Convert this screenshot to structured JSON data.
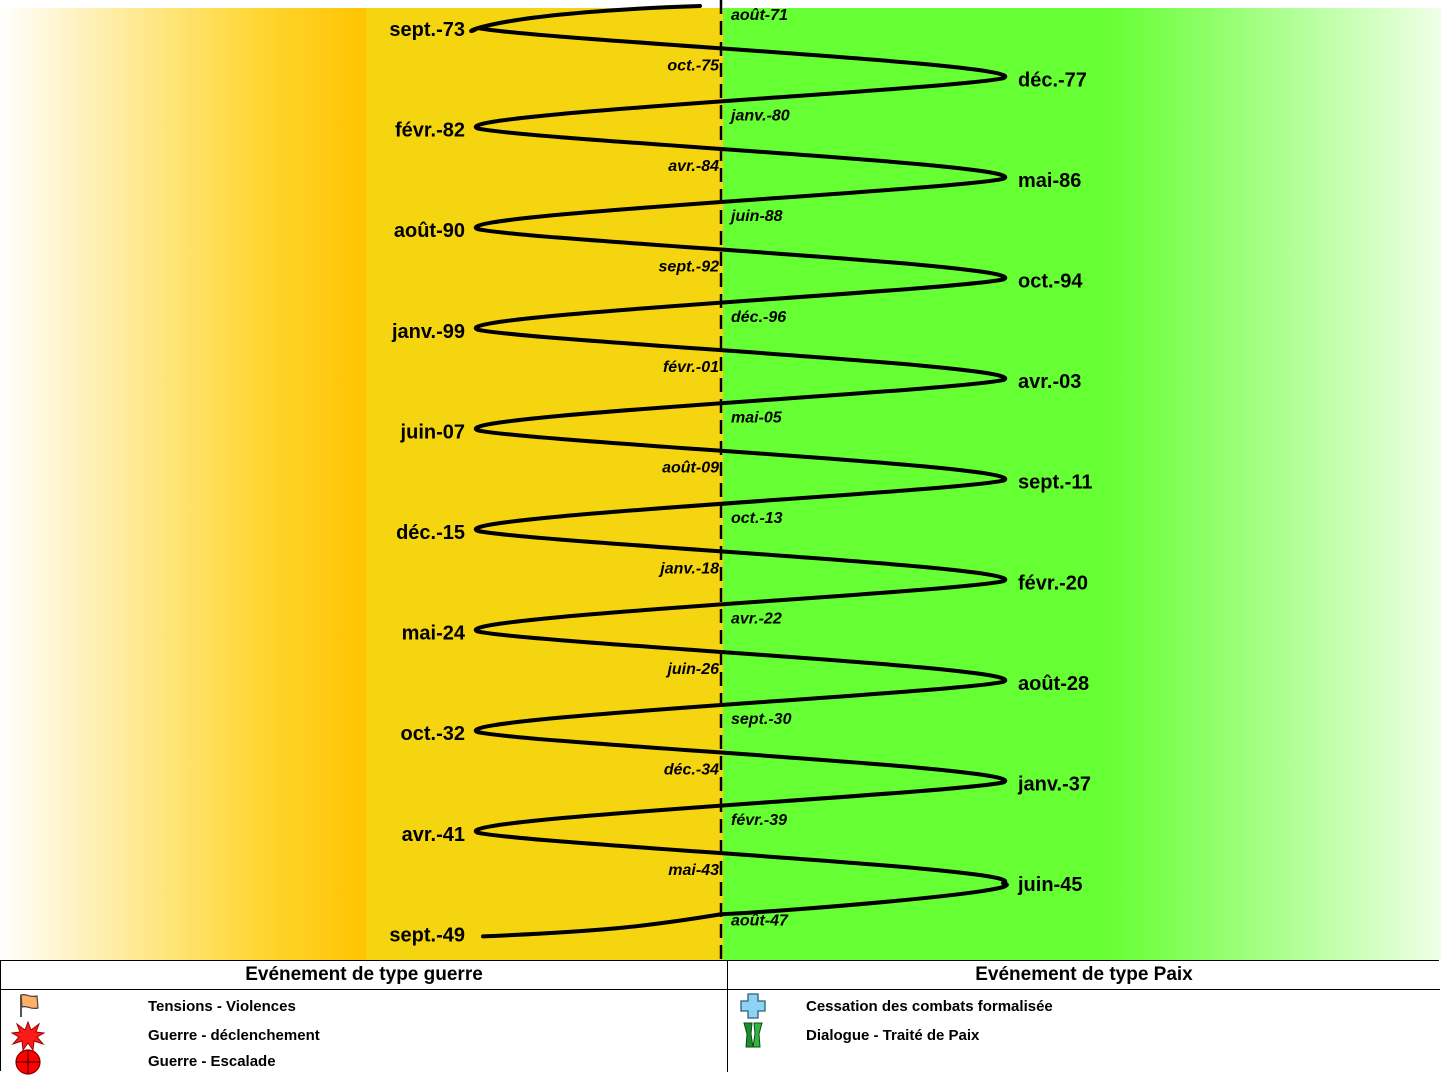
{
  "chart_data": {
    "type": "timeline",
    "center_dates": [
      {
        "label": "août-71"
      },
      {
        "label": "oct.-75"
      },
      {
        "label": "janv.-80"
      },
      {
        "label": "avr.-84"
      },
      {
        "label": "juin-88"
      },
      {
        "label": "sept.-92"
      },
      {
        "label": "déc.-96"
      },
      {
        "label": "févr.-01"
      },
      {
        "label": "mai-05"
      },
      {
        "label": "août-09"
      },
      {
        "label": "oct.-13"
      },
      {
        "label": "janv.-18"
      },
      {
        "label": "avr.-22"
      },
      {
        "label": "juin-26"
      },
      {
        "label": "sept.-30"
      },
      {
        "label": "déc.-34"
      },
      {
        "label": "févr.-39"
      },
      {
        "label": "mai-43"
      },
      {
        "label": "août-47"
      }
    ],
    "left_peaks": [
      {
        "label": "sept.-73"
      },
      {
        "label": "févr.-82"
      },
      {
        "label": "août-90"
      },
      {
        "label": "janv.-99"
      },
      {
        "label": "juin-07"
      },
      {
        "label": "déc.-15"
      },
      {
        "label": "mai-24"
      },
      {
        "label": "oct.-32"
      },
      {
        "label": "avr.-41"
      },
      {
        "label": "sept.-49"
      }
    ],
    "right_peaks": [
      {
        "label": "déc.-77"
      },
      {
        "label": "mai-86"
      },
      {
        "label": "oct.-94"
      },
      {
        "label": "avr.-03"
      },
      {
        "label": "sept.-11"
      },
      {
        "label": "févr.-20"
      },
      {
        "label": "août-28"
      },
      {
        "label": "janv.-37"
      },
      {
        "label": "juin-45"
      }
    ],
    "colors": {
      "war_zone": "#f5d50f",
      "war_edge": "#ffc300",
      "peace_zone": "#66ff33",
      "curve": "#000000"
    }
  },
  "legend": {
    "war": {
      "header": "Evénement de  type guerre",
      "items": [
        {
          "label": "Tensions - Violences",
          "icon": "flag-icon"
        },
        {
          "label": "Guerre - déclenchement",
          "icon": "explosion-icon"
        },
        {
          "label": "Guerre - Escalade",
          "icon": "target-icon"
        }
      ]
    },
    "peace": {
      "header": "Evénement de type Paix",
      "items": [
        {
          "label": "Cessation  des combats formalisée",
          "icon": "cross-icon"
        },
        {
          "label": "Dialogue - Traité de Paix",
          "icon": "handshake-icon"
        }
      ]
    }
  }
}
